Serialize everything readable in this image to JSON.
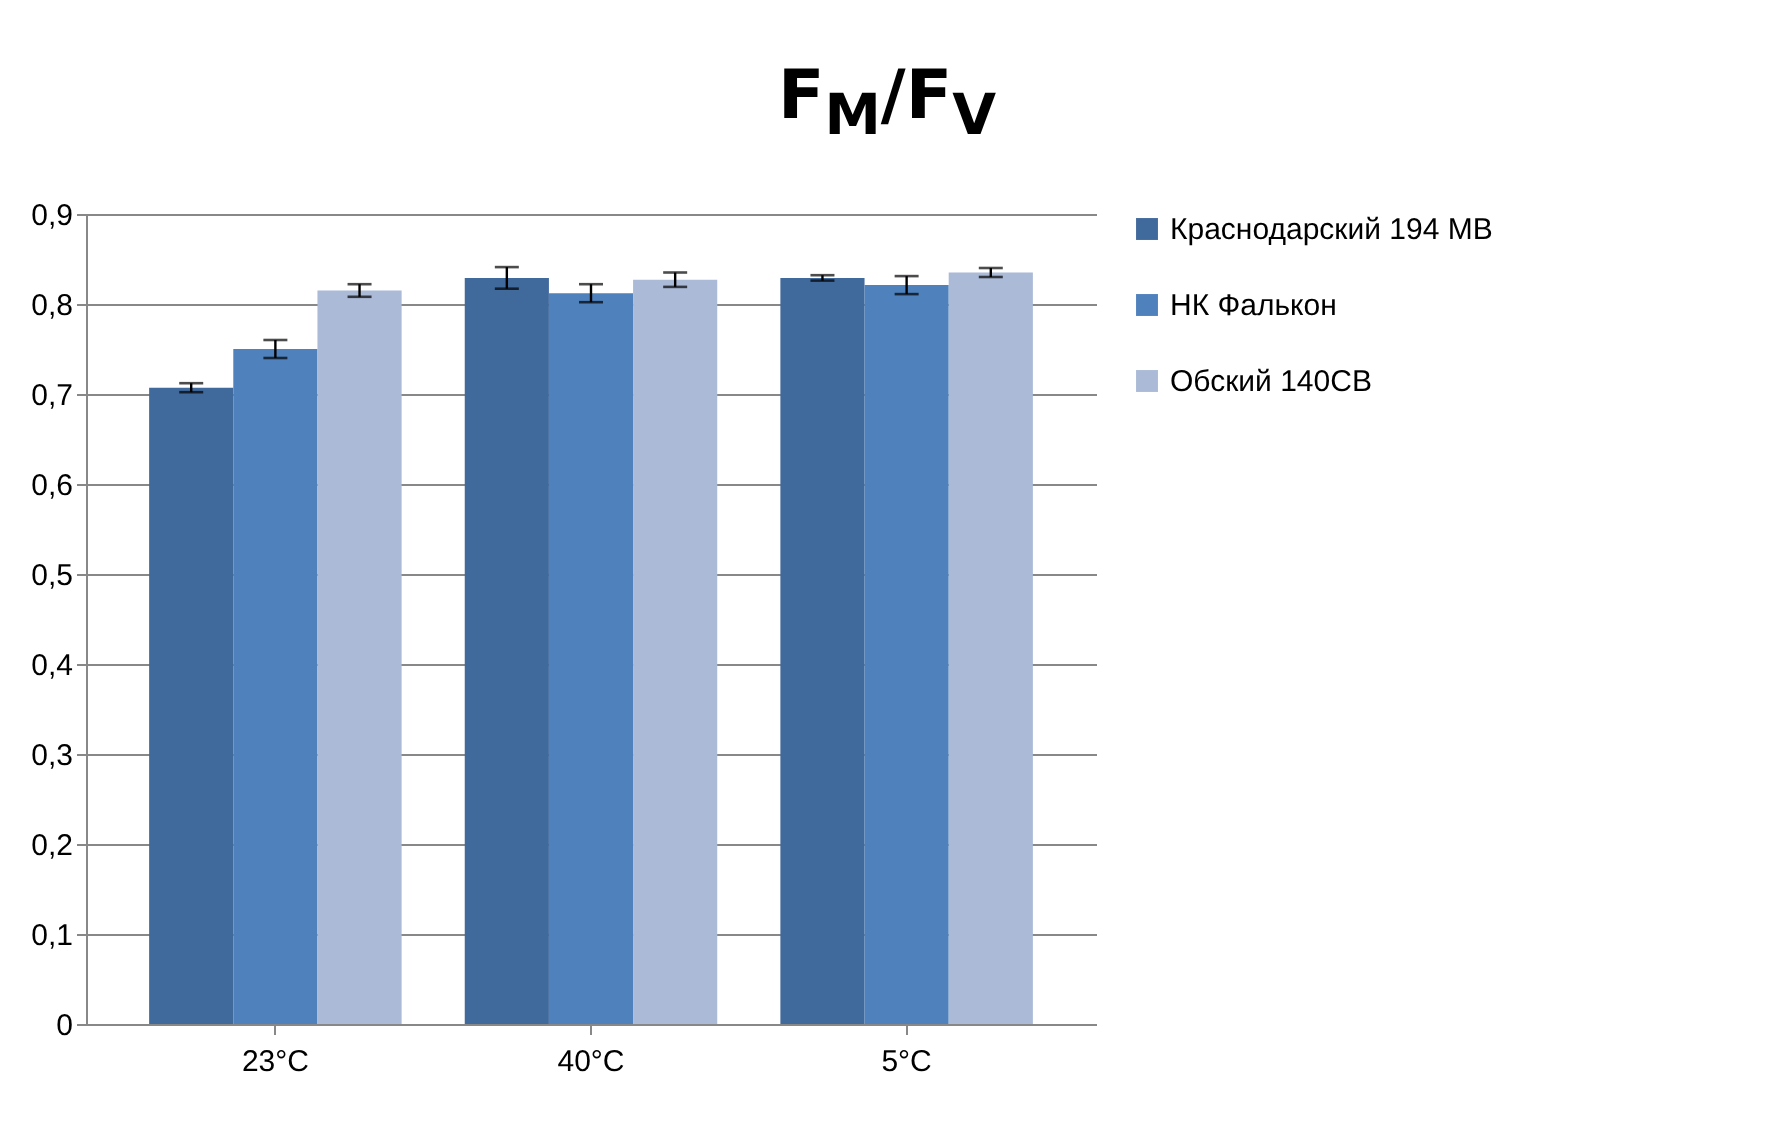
{
  "chart_data": {
    "type": "bar",
    "title": "F$_{M}$/F$_{V}$",
    "categories": [
      "23°C",
      "40°C",
      "5°C"
    ],
    "series": [
      {
        "name": "Краснодарский 194 МВ",
        "color": "#40699c",
        "values": [
          0.707,
          0.829,
          0.829
        ],
        "errors": [
          0.005,
          0.012,
          0.003
        ]
      },
      {
        "name": "НК Фалькон",
        "color": "#4f81bd",
        "values": [
          0.75,
          0.812,
          0.821
        ],
        "errors": [
          0.01,
          0.01,
          0.01
        ]
      },
      {
        "name": "Обский 140СВ",
        "color": "#aabad7",
        "values": [
          0.815,
          0.827,
          0.835
        ],
        "errors": [
          0.007,
          0.008,
          0.005
        ]
      }
    ],
    "ylim": [
      0,
      0.9
    ],
    "yticks": [
      0,
      {
        "value": 0.1,
        "label": "0,1"
      },
      {
        "value": 0.2,
        "label": "0,2"
      },
      {
        "value": 0.3,
        "label": "0,3"
      },
      {
        "value": 0.4,
        "label": "0,4"
      },
      {
        "value": 0.5,
        "label": "0,5"
      },
      {
        "value": 0.6,
        "label": "0,6"
      },
      {
        "value": 0.7,
        "label": "0,7"
      },
      {
        "value": 0.8,
        "label": "0,8"
      },
      {
        "value": 0.9,
        "label": "0,9"
      }
    ],
    "grid": "y",
    "legend": "right"
  }
}
